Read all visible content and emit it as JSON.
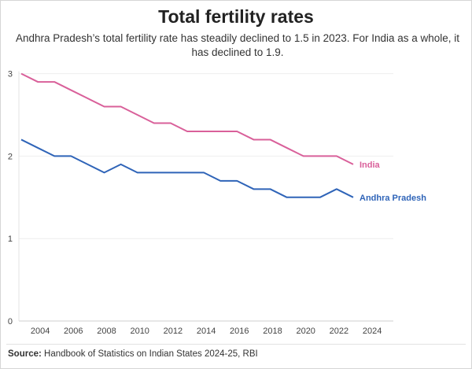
{
  "title": "Total fertility rates",
  "subtitle": "Andhra Pradesh’s total fertility rate has steadily declined to 1.5 in 2023. For India as a whole, it has declined to 1.9.",
  "source_label": "Source:",
  "source_text": "Handbook of Statistics on Indian States 2024-25, RBI",
  "chart_data": {
    "type": "line",
    "title": "Total fertility rates",
    "xlabel": "",
    "ylabel": "",
    "xlim": [
      2003,
      2024
    ],
    "ylim": [
      0,
      3
    ],
    "x_ticks": [
      2004,
      2006,
      2008,
      2010,
      2012,
      2014,
      2016,
      2018,
      2020,
      2022,
      2024
    ],
    "y_ticks": [
      0,
      1,
      2,
      3
    ],
    "grid": "horizontal",
    "legend": "inline labels at line ends",
    "x": [
      2003,
      2004,
      2005,
      2006,
      2007,
      2008,
      2009,
      2010,
      2011,
      2012,
      2013,
      2014,
      2015,
      2016,
      2017,
      2018,
      2019,
      2020,
      2021,
      2022,
      2023
    ],
    "series": [
      {
        "name": "India",
        "color": "#d9609a",
        "values": [
          3.0,
          2.9,
          2.9,
          2.8,
          2.7,
          2.6,
          2.6,
          2.5,
          2.4,
          2.4,
          2.3,
          2.3,
          2.3,
          2.3,
          2.2,
          2.2,
          2.1,
          2.0,
          2.0,
          2.0,
          1.9
        ]
      },
      {
        "name": "Andhra Pradesh",
        "color": "#2f64b8",
        "values": [
          2.2,
          2.1,
          2.0,
          2.0,
          1.9,
          1.8,
          1.9,
          1.8,
          1.8,
          1.8,
          1.8,
          1.8,
          1.7,
          1.7,
          1.6,
          1.6,
          1.5,
          1.5,
          1.5,
          1.6,
          1.5
        ]
      }
    ]
  }
}
